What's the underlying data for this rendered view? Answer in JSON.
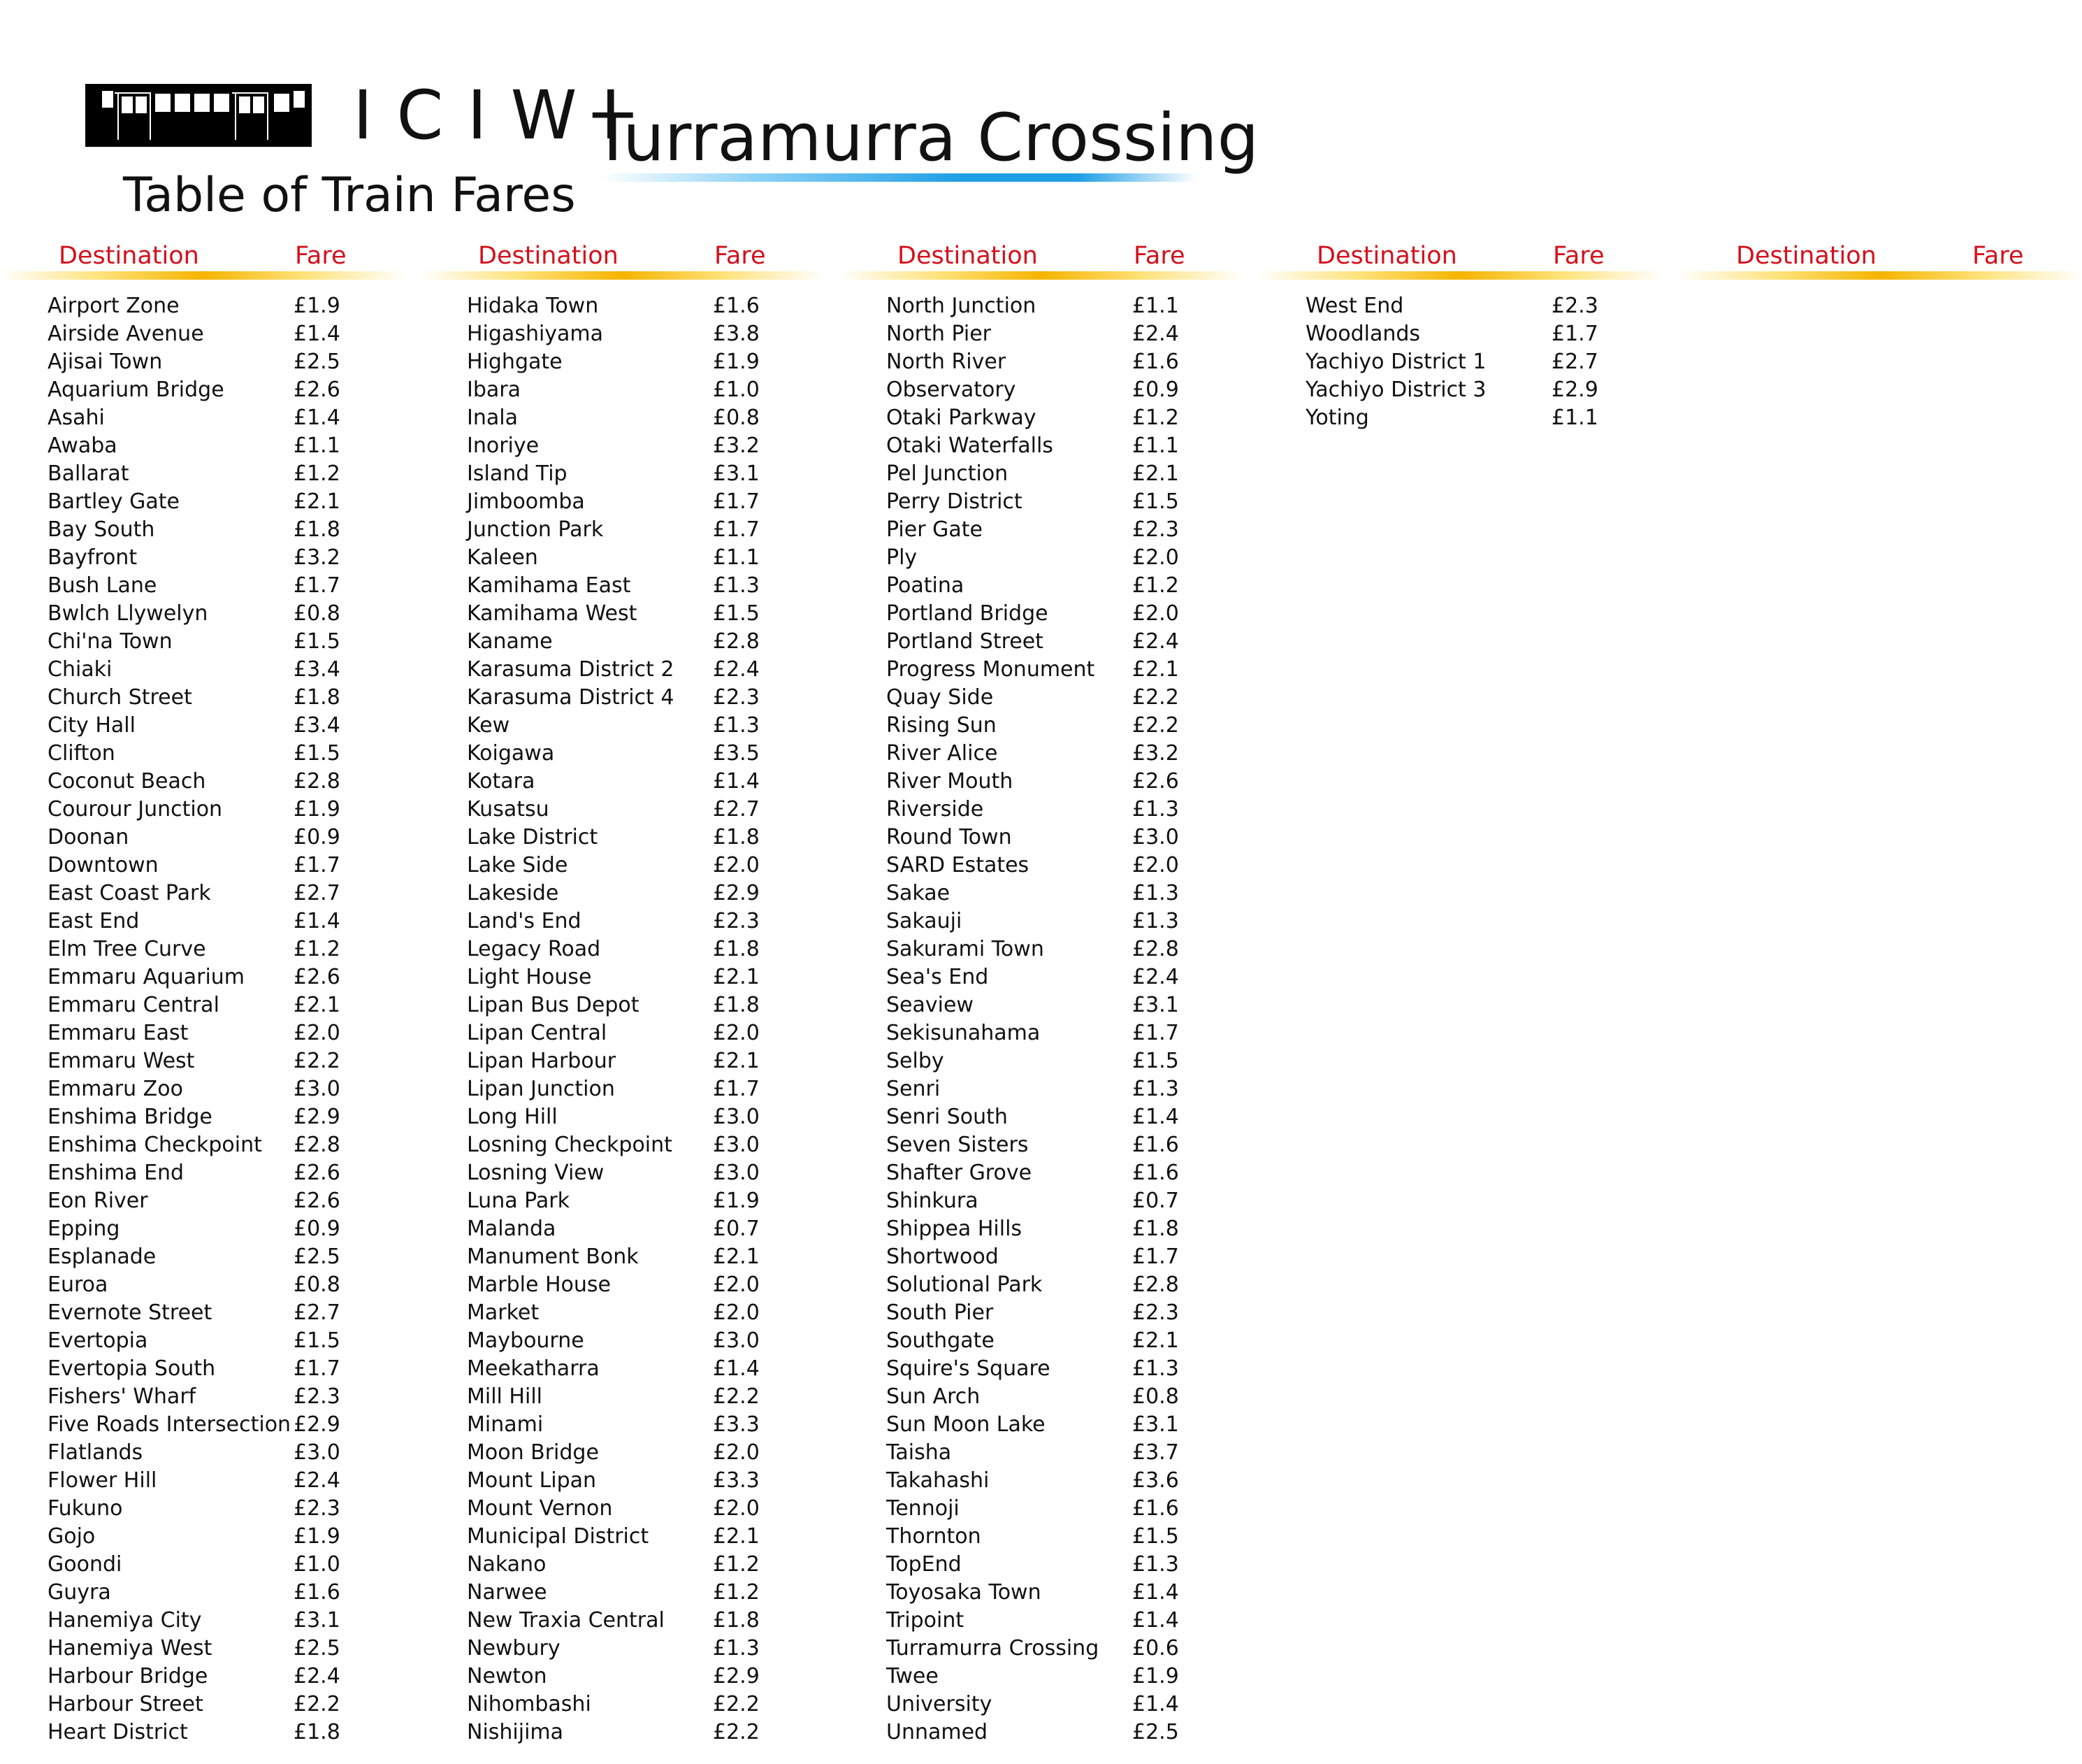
{
  "header": {
    "brand": "ICIWI",
    "station": "Turramurra Crossing",
    "subtitle": "Table of Train Fares",
    "colors": {
      "heading": "#d4101c",
      "underline_gold": "#f5b400",
      "underline_blue": "#1f9fe6"
    },
    "logo_icon": "train-icon"
  },
  "column_headers": {
    "destination": "Destination",
    "fare": "Fare"
  },
  "columns": [
    [
      {
        "dest": "Airport Zone",
        "fare": "£1.9"
      },
      {
        "dest": "Airside Avenue",
        "fare": "£1.4"
      },
      {
        "dest": "Ajisai Town",
        "fare": "£2.5"
      },
      {
        "dest": "Aquarium Bridge",
        "fare": "£2.6"
      },
      {
        "dest": "Asahi",
        "fare": "£1.4"
      },
      {
        "dest": "Awaba",
        "fare": "£1.1"
      },
      {
        "dest": "Ballarat",
        "fare": "£1.2"
      },
      {
        "dest": "Bartley Gate",
        "fare": "£2.1"
      },
      {
        "dest": "Bay South",
        "fare": "£1.8"
      },
      {
        "dest": "Bayfront",
        "fare": "£3.2"
      },
      {
        "dest": "Bush Lane",
        "fare": "£1.7"
      },
      {
        "dest": "Bwlch Llywelyn",
        "fare": "£0.8"
      },
      {
        "dest": "Chi'na Town",
        "fare": "£1.5"
      },
      {
        "dest": "Chiaki",
        "fare": "£3.4"
      },
      {
        "dest": "Church Street",
        "fare": "£1.8"
      },
      {
        "dest": "City Hall",
        "fare": "£3.4"
      },
      {
        "dest": "Clifton",
        "fare": "£1.5"
      },
      {
        "dest": "Coconut Beach",
        "fare": "£2.8"
      },
      {
        "dest": "Courour Junction",
        "fare": "£1.9"
      },
      {
        "dest": "Doonan",
        "fare": "£0.9"
      },
      {
        "dest": "Downtown",
        "fare": "£1.7"
      },
      {
        "dest": "East Coast Park",
        "fare": "£2.7"
      },
      {
        "dest": "East End",
        "fare": "£1.4"
      },
      {
        "dest": "Elm Tree Curve",
        "fare": "£1.2"
      },
      {
        "dest": "Emmaru Aquarium",
        "fare": "£2.6"
      },
      {
        "dest": "Emmaru Central",
        "fare": "£2.1"
      },
      {
        "dest": "Emmaru East",
        "fare": "£2.0"
      },
      {
        "dest": "Emmaru West",
        "fare": "£2.2"
      },
      {
        "dest": "Emmaru Zoo",
        "fare": "£3.0"
      },
      {
        "dest": "Enshima Bridge",
        "fare": "£2.9"
      },
      {
        "dest": "Enshima Checkpoint",
        "fare": "£2.8"
      },
      {
        "dest": "Enshima End",
        "fare": "£2.6"
      },
      {
        "dest": "Eon River",
        "fare": "£2.6"
      },
      {
        "dest": "Epping",
        "fare": "£0.9"
      },
      {
        "dest": "Esplanade",
        "fare": "£2.5"
      },
      {
        "dest": "Euroa",
        "fare": "£0.8"
      },
      {
        "dest": "Evernote Street",
        "fare": "£2.7"
      },
      {
        "dest": "Evertopia",
        "fare": "£1.5"
      },
      {
        "dest": "Evertopia South",
        "fare": "£1.7"
      },
      {
        "dest": "Fishers' Wharf",
        "fare": "£2.3"
      },
      {
        "dest": "Five Roads Intersection",
        "fare": "£2.9"
      },
      {
        "dest": "Flatlands",
        "fare": "£3.0"
      },
      {
        "dest": "Flower Hill",
        "fare": "£2.4"
      },
      {
        "dest": "Fukuno",
        "fare": "£2.3"
      },
      {
        "dest": "Gojo",
        "fare": "£1.9"
      },
      {
        "dest": "Goondi",
        "fare": "£1.0"
      },
      {
        "dest": "Guyra",
        "fare": "£1.6"
      },
      {
        "dest": "Hanemiya City",
        "fare": "£3.1"
      },
      {
        "dest": "Hanemiya West",
        "fare": "£2.5"
      },
      {
        "dest": "Harbour Bridge",
        "fare": "£2.4"
      },
      {
        "dest": "Harbour Street",
        "fare": "£2.2"
      },
      {
        "dest": "Heart District",
        "fare": "£1.8"
      }
    ],
    [
      {
        "dest": "Hidaka Town",
        "fare": "£1.6"
      },
      {
        "dest": "Higashiyama",
        "fare": "£3.8"
      },
      {
        "dest": "Highgate",
        "fare": "£1.9"
      },
      {
        "dest": "Ibara",
        "fare": "£1.0"
      },
      {
        "dest": "Inala",
        "fare": "£0.8"
      },
      {
        "dest": "Inoriye",
        "fare": "£3.2"
      },
      {
        "dest": "Island Tip",
        "fare": "£3.1"
      },
      {
        "dest": "Jimboomba",
        "fare": "£1.7"
      },
      {
        "dest": "Junction Park",
        "fare": "£1.7"
      },
      {
        "dest": "Kaleen",
        "fare": "£1.1"
      },
      {
        "dest": "Kamihama East",
        "fare": "£1.3"
      },
      {
        "dest": "Kamihama West",
        "fare": "£1.5"
      },
      {
        "dest": "Kaname",
        "fare": "£2.8"
      },
      {
        "dest": "Karasuma District 2",
        "fare": "£2.4"
      },
      {
        "dest": "Karasuma District 4",
        "fare": "£2.3"
      },
      {
        "dest": "Kew",
        "fare": "£1.3"
      },
      {
        "dest": "Koigawa",
        "fare": "£3.5"
      },
      {
        "dest": "Kotara",
        "fare": "£1.4"
      },
      {
        "dest": "Kusatsu",
        "fare": "£2.7"
      },
      {
        "dest": "Lake District",
        "fare": "£1.8"
      },
      {
        "dest": "Lake Side",
        "fare": "£2.0"
      },
      {
        "dest": "Lakeside",
        "fare": "£2.9"
      },
      {
        "dest": "Land's End",
        "fare": "£2.3"
      },
      {
        "dest": "Legacy Road",
        "fare": "£1.8"
      },
      {
        "dest": "Light House",
        "fare": "£2.1"
      },
      {
        "dest": "Lipan Bus Depot",
        "fare": "£1.8"
      },
      {
        "dest": "Lipan Central",
        "fare": "£2.0"
      },
      {
        "dest": "Lipan Harbour",
        "fare": "£2.1"
      },
      {
        "dest": "Lipan Junction",
        "fare": "£1.7"
      },
      {
        "dest": "Long Hill",
        "fare": "£3.0"
      },
      {
        "dest": "Losning Checkpoint",
        "fare": "£3.0"
      },
      {
        "dest": "Losning View",
        "fare": "£3.0"
      },
      {
        "dest": "Luna Park",
        "fare": "£1.9"
      },
      {
        "dest": "Malanda",
        "fare": "£0.7"
      },
      {
        "dest": "Manument Bonk",
        "fare": "£2.1"
      },
      {
        "dest": "Marble House",
        "fare": "£2.0"
      },
      {
        "dest": "Market",
        "fare": "£2.0"
      },
      {
        "dest": "Maybourne",
        "fare": "£3.0"
      },
      {
        "dest": "Meekatharra",
        "fare": "£1.4"
      },
      {
        "dest": "Mill Hill",
        "fare": "£2.2"
      },
      {
        "dest": "Minami",
        "fare": "£3.3"
      },
      {
        "dest": "Moon Bridge",
        "fare": "£2.0"
      },
      {
        "dest": "Mount Lipan",
        "fare": "£3.3"
      },
      {
        "dest": "Mount Vernon",
        "fare": "£2.0"
      },
      {
        "dest": "Municipal District",
        "fare": "£2.1"
      },
      {
        "dest": "Nakano",
        "fare": "£1.2"
      },
      {
        "dest": "Narwee",
        "fare": "£1.2"
      },
      {
        "dest": "New Traxia Central",
        "fare": "£1.8"
      },
      {
        "dest": "Newbury",
        "fare": "£1.3"
      },
      {
        "dest": "Newton",
        "fare": "£2.9"
      },
      {
        "dest": "Nihombashi",
        "fare": "£2.2"
      },
      {
        "dest": "Nishijima",
        "fare": "£2.2"
      }
    ],
    [
      {
        "dest": "North Junction",
        "fare": "£1.1"
      },
      {
        "dest": "North Pier",
        "fare": "£2.4"
      },
      {
        "dest": "North River",
        "fare": "£1.6"
      },
      {
        "dest": "Observatory",
        "fare": "£0.9"
      },
      {
        "dest": "Otaki Parkway",
        "fare": "£1.2"
      },
      {
        "dest": "Otaki Waterfalls",
        "fare": "£1.1"
      },
      {
        "dest": "Pel Junction",
        "fare": "£2.1"
      },
      {
        "dest": "Perry District",
        "fare": "£1.5"
      },
      {
        "dest": "Pier Gate",
        "fare": "£2.3"
      },
      {
        "dest": "Ply",
        "fare": "£2.0"
      },
      {
        "dest": "Poatina",
        "fare": "£1.2"
      },
      {
        "dest": "Portland Bridge",
        "fare": "£2.0"
      },
      {
        "dest": "Portland Street",
        "fare": "£2.4"
      },
      {
        "dest": "Progress Monument",
        "fare": "£2.1"
      },
      {
        "dest": "Quay Side",
        "fare": "£2.2"
      },
      {
        "dest": "Rising Sun",
        "fare": "£2.2"
      },
      {
        "dest": "River Alice",
        "fare": "£3.2"
      },
      {
        "dest": "River Mouth",
        "fare": "£2.6"
      },
      {
        "dest": "Riverside",
        "fare": "£1.3"
      },
      {
        "dest": "Round Town",
        "fare": "£3.0"
      },
      {
        "dest": "SARD Estates",
        "fare": "£2.0"
      },
      {
        "dest": "Sakae",
        "fare": "£1.3"
      },
      {
        "dest": "Sakauji",
        "fare": "£1.3"
      },
      {
        "dest": "Sakurami Town",
        "fare": "£2.8"
      },
      {
        "dest": "Sea's End",
        "fare": "£2.4"
      },
      {
        "dest": "Seaview",
        "fare": "£3.1"
      },
      {
        "dest": "Sekisunahama",
        "fare": "£1.7"
      },
      {
        "dest": "Selby",
        "fare": "£1.5"
      },
      {
        "dest": "Senri",
        "fare": "£1.3"
      },
      {
        "dest": "Senri South",
        "fare": "£1.4"
      },
      {
        "dest": "Seven Sisters",
        "fare": "£1.6"
      },
      {
        "dest": "Shafter Grove",
        "fare": "£1.6"
      },
      {
        "dest": "Shinkura",
        "fare": "£0.7"
      },
      {
        "dest": "Shippea Hills",
        "fare": "£1.8"
      },
      {
        "dest": "Shortwood",
        "fare": "£1.7"
      },
      {
        "dest": "Solutional Park",
        "fare": "£2.8"
      },
      {
        "dest": "South Pier",
        "fare": "£2.3"
      },
      {
        "dest": "Southgate",
        "fare": "£2.1"
      },
      {
        "dest": "Squire's Square",
        "fare": "£1.3"
      },
      {
        "dest": "Sun Arch",
        "fare": "£0.8"
      },
      {
        "dest": "Sun Moon Lake",
        "fare": "£3.1"
      },
      {
        "dest": "Taisha",
        "fare": "£3.7"
      },
      {
        "dest": "Takahashi",
        "fare": "£3.6"
      },
      {
        "dest": "Tennoji",
        "fare": "£1.6"
      },
      {
        "dest": "Thornton",
        "fare": "£1.5"
      },
      {
        "dest": "TopEnd",
        "fare": "£1.3"
      },
      {
        "dest": "Toyosaka Town",
        "fare": "£1.4"
      },
      {
        "dest": "Tripoint",
        "fare": "£1.4"
      },
      {
        "dest": "Turramurra Crossing",
        "fare": "£0.6"
      },
      {
        "dest": "Twee",
        "fare": "£1.9"
      },
      {
        "dest": "University",
        "fare": "£1.4"
      },
      {
        "dest": "Unnamed",
        "fare": "£2.5"
      }
    ],
    [
      {
        "dest": "West End",
        "fare": "£2.3"
      },
      {
        "dest": "Woodlands",
        "fare": "£1.7"
      },
      {
        "dest": "Yachiyo District 1",
        "fare": "£2.7"
      },
      {
        "dest": "Yachiyo District 3",
        "fare": "£2.9"
      },
      {
        "dest": "Yoting",
        "fare": "£1.1"
      }
    ],
    []
  ]
}
